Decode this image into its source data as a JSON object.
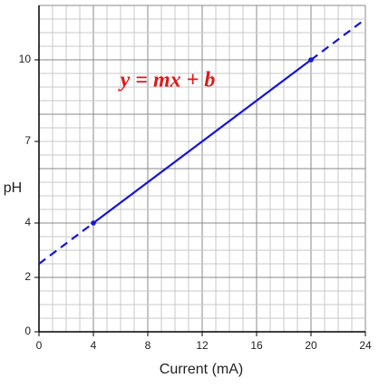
{
  "chart_data": {
    "type": "line",
    "xlabel": "Current (mA)",
    "ylabel": "pH",
    "annotation": "y = mx + b",
    "x": [
      0,
      4,
      20,
      24
    ],
    "values": [
      2.5,
      4,
      10,
      11.5
    ],
    "color": "#1515d8",
    "annotation_color": "#e01818",
    "solid_points": [
      1,
      2
    ],
    "xlim": [
      0,
      24
    ],
    "xticks": [
      0,
      4,
      8,
      12,
      16,
      20,
      24
    ],
    "ylim": [
      0,
      12
    ],
    "yticks": [
      0,
      2,
      4,
      7,
      10
    ],
    "grid": true,
    "x_minor_step": 1,
    "y_minor_step": 0.5,
    "x_major_step": 4,
    "y_major_step": 2
  }
}
